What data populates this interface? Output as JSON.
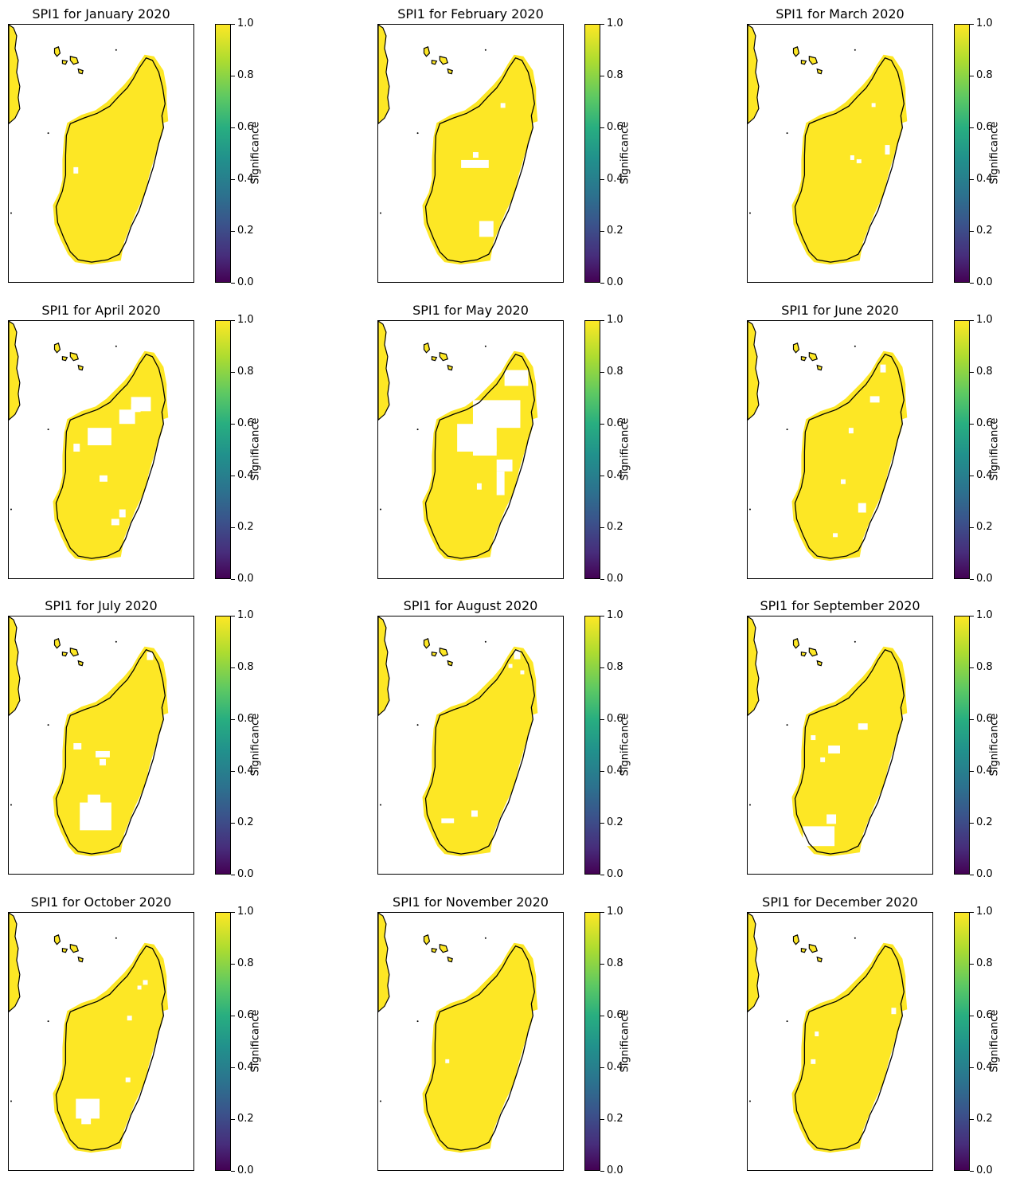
{
  "figure": {
    "colorbar_label": "Significance",
    "colorbar_ticks": [
      "0.0",
      "0.2",
      "0.4",
      "0.6",
      "0.8",
      "1.0"
    ],
    "colors": {
      "significant": "#fde725",
      "coast": "#000000",
      "background": "#ffffff"
    },
    "panels": [
      {
        "title": "SPI1 for January 2020",
        "holes": [
          [
            82,
            180,
            6,
            8
          ]
        ]
      },
      {
        "title": "SPI1 for February 2020",
        "holes": [
          [
            105,
            171,
            35,
            10
          ],
          [
            120,
            161,
            7,
            7
          ],
          [
            155,
            99,
            6,
            6
          ],
          [
            128,
            248,
            18,
            20
          ],
          [
            145,
            282,
            10,
            12
          ]
        ]
      },
      {
        "title": "SPI1 for March 2020",
        "holes": [
          [
            157,
            99,
            5,
            5
          ],
          [
            138,
            170,
            6,
            5
          ],
          [
            130,
            165,
            5,
            6
          ],
          [
            174,
            152,
            6,
            12
          ]
        ]
      },
      {
        "title": "SPI1 for April 2020",
        "holes": [
          [
            155,
            96,
            25,
            18
          ],
          [
            140,
            112,
            20,
            18
          ],
          [
            100,
            135,
            30,
            22
          ],
          [
            82,
            155,
            8,
            10
          ],
          [
            115,
            195,
            10,
            8
          ],
          [
            140,
            238,
            8,
            10
          ],
          [
            130,
            250,
            10,
            8
          ],
          [
            155,
            105,
            12,
            10
          ]
        ]
      },
      {
        "title": "SPI1 for May 2020",
        "holes": [
          [
            160,
            62,
            30,
            20
          ],
          [
            120,
            100,
            60,
            35
          ],
          [
            100,
            130,
            50,
            35
          ],
          [
            120,
            150,
            30,
            20
          ],
          [
            150,
            175,
            20,
            15
          ],
          [
            150,
            190,
            10,
            30
          ],
          [
            125,
            205,
            6,
            8
          ]
        ]
      },
      {
        "title": "SPI1 for June 2020",
        "holes": [
          [
            168,
            55,
            7,
            10
          ],
          [
            155,
            95,
            12,
            8
          ],
          [
            128,
            135,
            6,
            7
          ],
          [
            118,
            200,
            6,
            6
          ],
          [
            140,
            230,
            10,
            12
          ],
          [
            108,
            268,
            6,
            5
          ]
        ]
      },
      {
        "title": "SPI1 for July 2020",
        "holes": [
          [
            175,
            45,
            8,
            10
          ],
          [
            82,
            160,
            10,
            8
          ],
          [
            110,
            170,
            18,
            8
          ],
          [
            115,
            180,
            8,
            8
          ],
          [
            90,
            235,
            40,
            35
          ],
          [
            100,
            225,
            16,
            15
          ]
        ]
      },
      {
        "title": "SPI1 for August 2020",
        "holes": [
          [
            172,
            42,
            8,
            12
          ],
          [
            165,
            60,
            5,
            5
          ],
          [
            180,
            68,
            5,
            5
          ],
          [
            80,
            255,
            16,
            6
          ],
          [
            118,
            245,
            8,
            8
          ]
        ]
      },
      {
        "title": "SPI1 for September 2020",
        "holes": [
          [
            140,
            135,
            12,
            8
          ],
          [
            102,
            163,
            15,
            10
          ],
          [
            92,
            178,
            6,
            6
          ],
          [
            80,
            150,
            6,
            6
          ],
          [
            100,
            250,
            12,
            12
          ],
          [
            70,
            265,
            40,
            25
          ]
        ]
      },
      {
        "title": "SPI1 for October 2020",
        "holes": [
          [
            170,
            85,
            6,
            6
          ],
          [
            163,
            92,
            5,
            5
          ],
          [
            150,
            130,
            6,
            6
          ],
          [
            85,
            235,
            30,
            25
          ],
          [
            92,
            255,
            12,
            12
          ],
          [
            148,
            208,
            6,
            6
          ]
        ]
      },
      {
        "title": "SPI1 for November 2020",
        "holes": [
          [
            85,
            185,
            5,
            5
          ]
        ]
      },
      {
        "title": "SPI1 for December 2020",
        "holes": [
          [
            85,
            150,
            5,
            6
          ],
          [
            80,
            185,
            6,
            6
          ],
          [
            182,
            120,
            6,
            8
          ]
        ]
      }
    ]
  }
}
